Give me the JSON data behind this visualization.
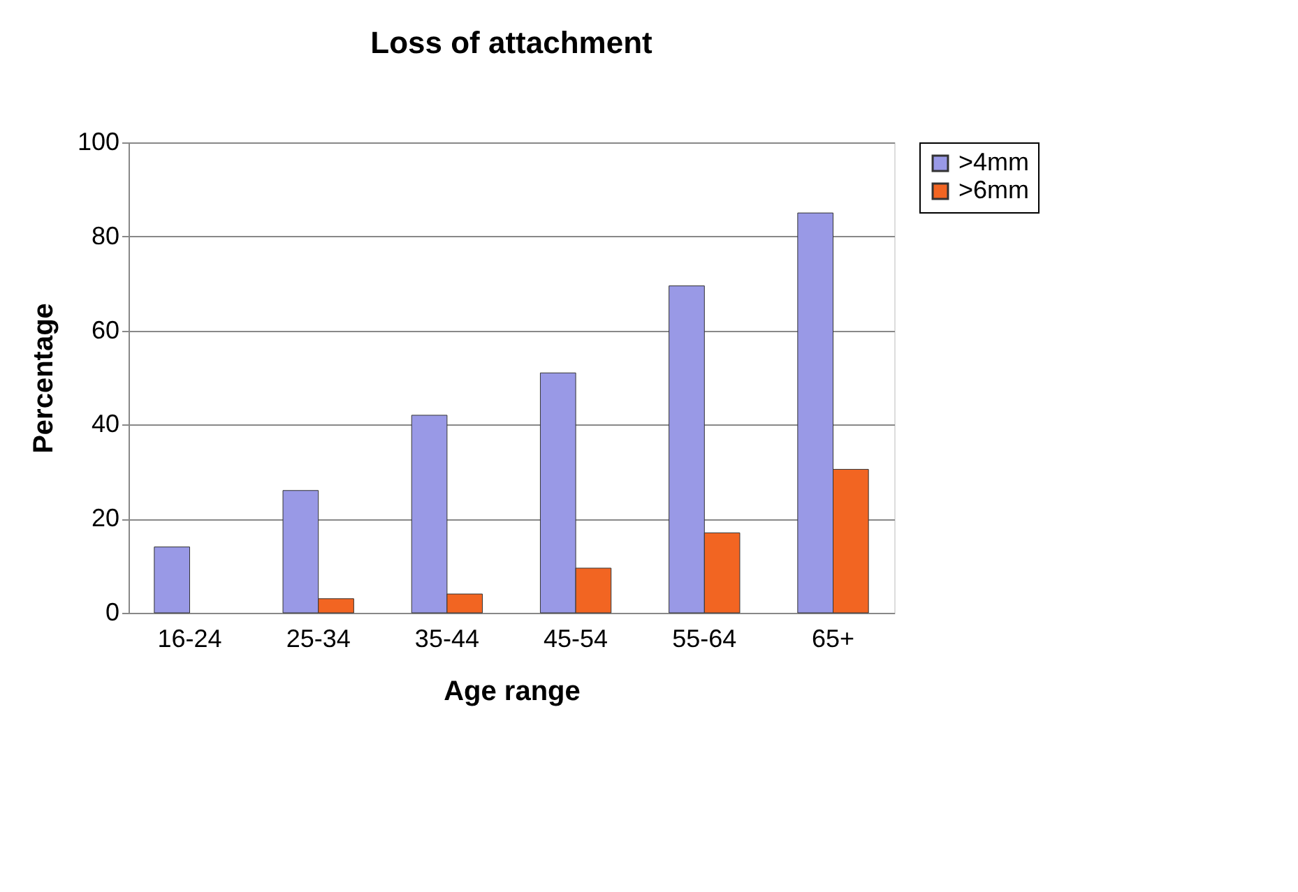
{
  "chart_data": {
    "type": "bar",
    "title": "Loss of attachment",
    "xlabel": "Age range",
    "ylabel": "Percentage",
    "categories": [
      "16-24",
      "25-34",
      "35-44",
      "45-54",
      "55-64",
      "65+"
    ],
    "series": [
      {
        "name": ">4mm",
        "color": "#9999e6",
        "values": [
          14,
          26,
          42,
          51,
          69.5,
          85
        ]
      },
      {
        "name": ">6mm",
        "color": "#f26522",
        "values": [
          null,
          3,
          4,
          9.5,
          17,
          30.5
        ]
      }
    ],
    "ylim": [
      0,
      100
    ],
    "yticks": [
      0,
      20,
      40,
      60,
      80,
      100
    ],
    "grid": "y",
    "legend": "top right"
  }
}
